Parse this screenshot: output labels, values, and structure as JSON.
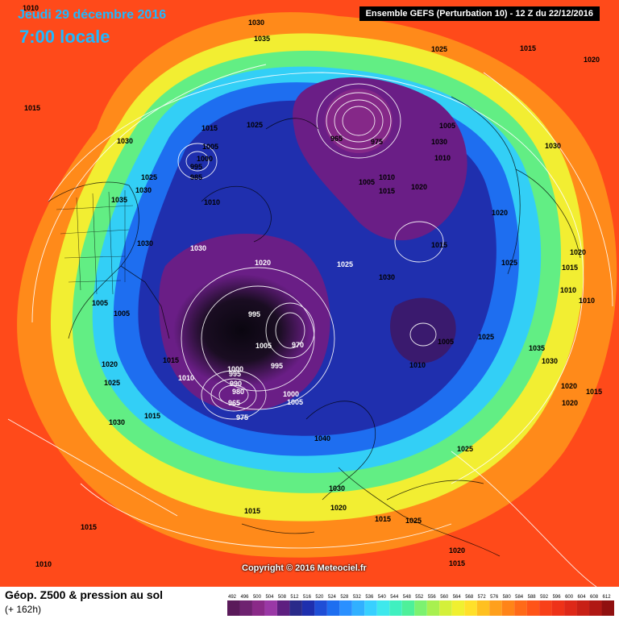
{
  "header": {
    "date": "Jeudi 29 décembre 2016",
    "time": "7:00 locale",
    "run": "Ensemble GEFS  (Perturbation 10)  -  12 Z du 22/12/2016"
  },
  "copyright": "Copyright © 2016 Meteociel.fr",
  "footer": {
    "title": "Géop. Z500 & pression au sol",
    "subtitle": "(+ 162h)"
  },
  "legend": {
    "values": [
      492,
      496,
      500,
      504,
      508,
      512,
      516,
      520,
      524,
      528,
      532,
      536,
      540,
      544,
      548,
      552,
      556,
      560,
      564,
      568,
      572,
      576,
      580,
      584,
      588,
      592,
      596,
      600,
      604,
      608,
      612
    ],
    "colors": [
      "#5a1a5a",
      "#6e2270",
      "#8a2a88",
      "#9a38a6",
      "#5e1f80",
      "#2a2a8a",
      "#1e2fae",
      "#1f4ed6",
      "#1e6ef0",
      "#2a90ff",
      "#31b0ff",
      "#38d0ff",
      "#3ee8ec",
      "#40f0c0",
      "#4ef09a",
      "#7cf270",
      "#a8f050",
      "#d4f03a",
      "#f0f030",
      "#ffe02a",
      "#ffc020",
      "#ffa01c",
      "#ff8418",
      "#ff6a18",
      "#ff5418",
      "#f84018",
      "#ee3218",
      "#de2818",
      "#c82016",
      "#b01814",
      "#901010"
    ]
  },
  "regions": {
    "background": "#ff4a1a",
    "outer_ring": "#ff8a1a",
    "yellow_ring": "#f2ee32",
    "green_ring": "#62ee84",
    "cyan_ring": "#33cff6",
    "blue_ring": "#1e6ef0",
    "deep_blue": "#1f2fae",
    "purple": "#6a1e86",
    "dark_core": "#120a18"
  },
  "pressure_labels": [
    "1010",
    "1030",
    "1035",
    "1015",
    "1030",
    "1015",
    "1025",
    "1005",
    "1000",
    "995",
    "985",
    "1010",
    "1025",
    "1035",
    "1030",
    "1030",
    "1030",
    "1020",
    "1005",
    "1005",
    "1015",
    "1020",
    "1010",
    "1025",
    "1030",
    "1015",
    "995",
    "1005",
    "970",
    "1000",
    "995",
    "990",
    "980",
    "965",
    "975",
    "1005",
    "1000",
    "1025",
    "1030",
    "995",
    "965",
    "975",
    "1005",
    "1010",
    "1015",
    "1020",
    "1030",
    "1005",
    "1010",
    "1020",
    "1015",
    "1025",
    "1005",
    "1010",
    "1025",
    "1030",
    "1020",
    "1015",
    "1010",
    "1010",
    "1020",
    "1020",
    "1015",
    "1035",
    "1030",
    "1015",
    "1020",
    "1025",
    "1040",
    "1030",
    "1020",
    "1015",
    "1025",
    "1025",
    "1015",
    "1015",
    "1010",
    "1020",
    "1015"
  ]
}
